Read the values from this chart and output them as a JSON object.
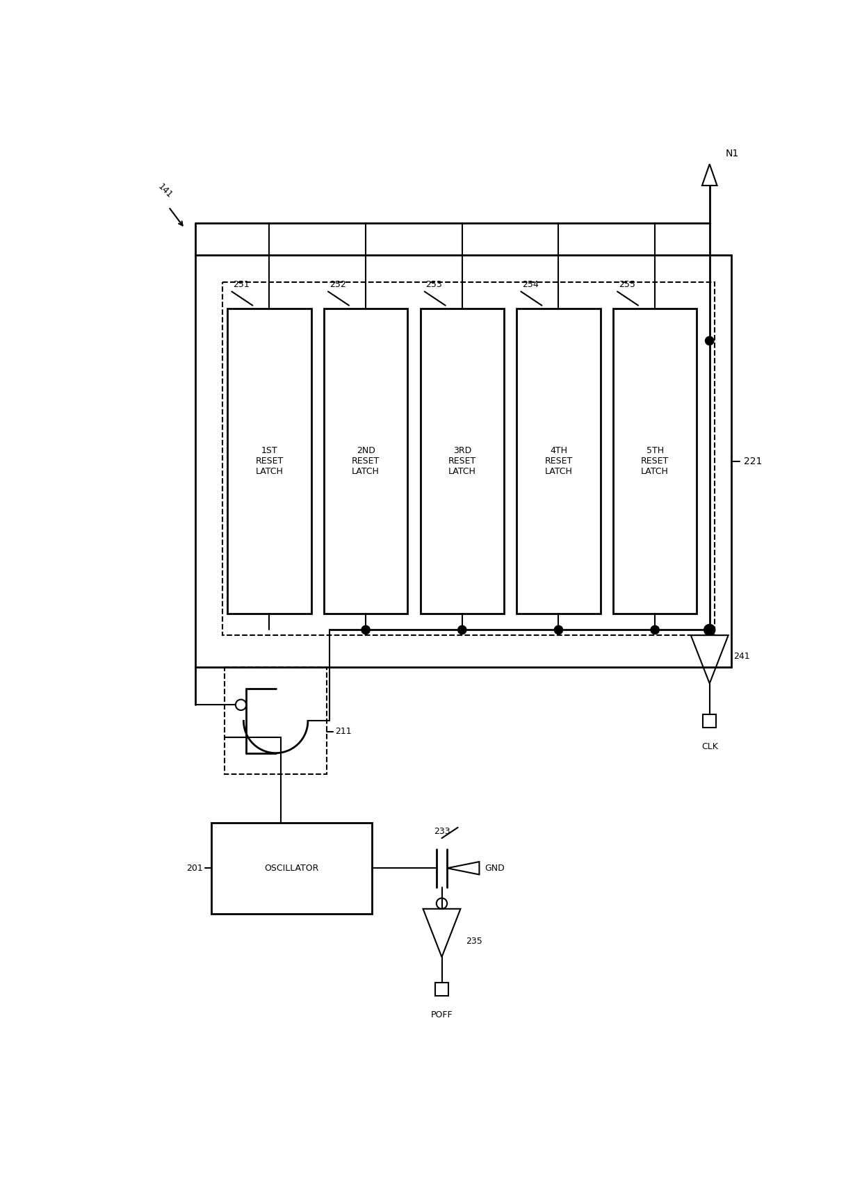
{
  "background_color": "#ffffff",
  "latch_labels": [
    "1ST\nRESET\nLATCH",
    "2ND\nRESET\nLATCH",
    "3RD\nRESET\nLATCH",
    "4TH\nRESET\nLATCH",
    "5TH\nRESET\nLATCH"
  ],
  "latch_ids": [
    "251",
    "252",
    "253",
    "254",
    "255"
  ],
  "label_221": "221",
  "label_141": "141",
  "label_201": "201",
  "label_211": "211",
  "label_233": "233",
  "label_235": "235",
  "label_241": "241",
  "label_N1": "N1",
  "label_CLK": "CLK",
  "label_POFF": "POFF",
  "label_GND": "GND",
  "label_OSC": "OSCILLATOR"
}
